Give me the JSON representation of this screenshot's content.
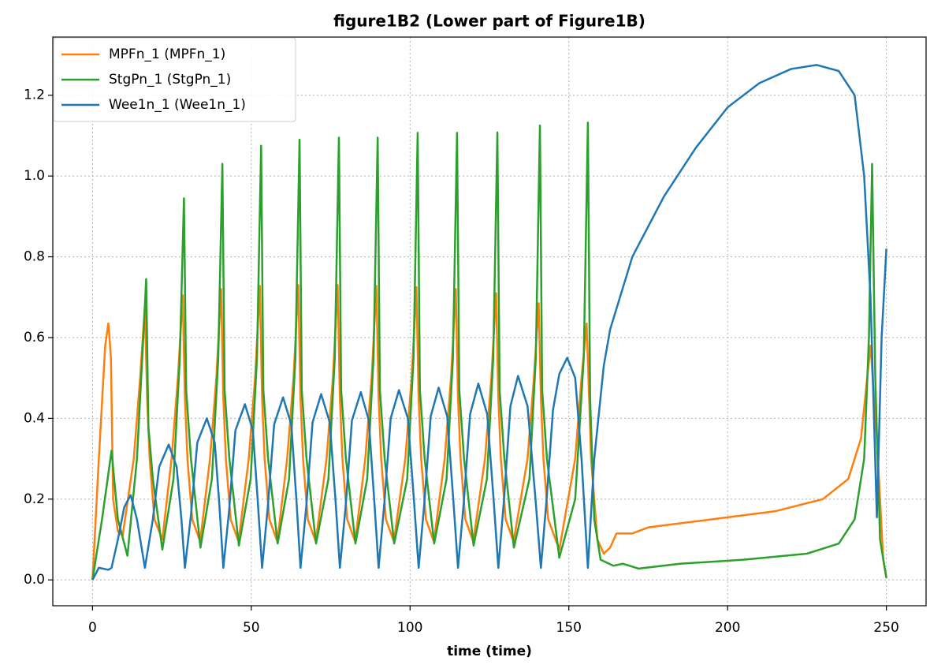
{
  "chart_data": {
    "type": "line",
    "title": "figure1B2 (Lower part of Figure1B)",
    "x_label": "time (time)",
    "xlim": [
      -12.5,
      262.5
    ],
    "ylim": [
      -0.064,
      1.344
    ],
    "xticks": [
      0,
      50,
      100,
      150,
      200,
      250
    ],
    "yticks": [
      {
        "value": 0,
        "label": "0.0"
      },
      {
        "value": 0.2,
        "label": "0.2"
      },
      {
        "value": 0.4,
        "label": "0.4"
      },
      {
        "value": 0.6,
        "label": "0.6"
      },
      {
        "value": 0.8,
        "label": "0.8"
      },
      {
        "value": 1.0,
        "label": "1.0"
      },
      {
        "value": 1.2,
        "label": "1.2"
      }
    ],
    "grid": true,
    "legend_loc": "upper left",
    "series": [
      {
        "name": "MPFn_1 (MPFn_1)",
        "color": "#ff7f0e",
        "x": [
          0,
          2,
          4,
          5,
          5.8,
          6.5,
          8,
          9.5,
          13,
          15,
          16.5,
          17.2,
          18,
          19.5,
          22,
          24.9,
          26.9,
          28.4,
          29.1,
          29.9,
          31.4,
          33.9,
          37,
          39,
          40.5,
          41.2,
          42,
          43.5,
          46,
          49.2,
          51.2,
          52.7,
          53.4,
          54.2,
          55.7,
          58.2,
          61.3,
          63.3,
          64.8,
          65.5,
          66.3,
          67.8,
          70.3,
          73.7,
          75.7,
          77.2,
          77.9,
          78.7,
          80.2,
          82.7,
          85.9,
          87.9,
          89.4,
          90.1,
          90.9,
          92.4,
          94.9,
          98.5,
          100.5,
          102,
          102.7,
          103.5,
          105,
          107.5,
          110.9,
          112.9,
          114.4,
          115.1,
          115.9,
          117.4,
          119.9,
          123.6,
          125.6,
          127.1,
          127.8,
          128.6,
          130.1,
          132.6,
          137,
          139,
          140.5,
          141.2,
          142,
          143.5,
          147,
          152,
          154,
          155.6,
          156.4,
          157,
          159,
          161,
          163,
          165,
          170,
          175,
          185,
          200,
          215,
          230,
          238,
          242,
          245,
          247,
          249,
          250
        ],
        "values": [
          0,
          0.3,
          0.58,
          0.635,
          0.55,
          0.2,
          0.12,
          0.11,
          0.3,
          0.5,
          0.68,
          0.45,
          0.3,
          0.15,
          0.1,
          0.3,
          0.5,
          0.705,
          0.45,
          0.3,
          0.15,
          0.095,
          0.3,
          0.5,
          0.72,
          0.45,
          0.3,
          0.15,
          0.095,
          0.3,
          0.5,
          0.728,
          0.45,
          0.3,
          0.15,
          0.095,
          0.3,
          0.5,
          0.73,
          0.45,
          0.3,
          0.15,
          0.095,
          0.3,
          0.5,
          0.73,
          0.45,
          0.3,
          0.15,
          0.095,
          0.3,
          0.5,
          0.728,
          0.45,
          0.3,
          0.15,
          0.095,
          0.3,
          0.5,
          0.725,
          0.45,
          0.3,
          0.15,
          0.095,
          0.3,
          0.5,
          0.72,
          0.45,
          0.3,
          0.15,
          0.095,
          0.3,
          0.5,
          0.71,
          0.45,
          0.3,
          0.15,
          0.095,
          0.3,
          0.5,
          0.685,
          0.45,
          0.3,
          0.15,
          0.075,
          0.3,
          0.5,
          0.635,
          0.45,
          0.3,
          0.1,
          0.065,
          0.08,
          0.115,
          0.115,
          0.13,
          0.14,
          0.155,
          0.17,
          0.2,
          0.25,
          0.35,
          0.58,
          0.35,
          0.05,
          0.005
        ]
      },
      {
        "name": "StgPn_1 (StgPn_1)",
        "color": "#2ca02c",
        "x": [
          0,
          3,
          6,
          8,
          11,
          14,
          16,
          16.9,
          17.6,
          19,
          22,
          25.5,
          27.5,
          28.8,
          29.5,
          31,
          34,
          37.6,
          39.6,
          40.9,
          41.6,
          43.1,
          46.1,
          49.8,
          51.8,
          53.1,
          53.8,
          55.3,
          58.3,
          61.9,
          63.9,
          65.2,
          65.9,
          67.4,
          70.4,
          74.3,
          76.3,
          77.6,
          78.3,
          79.8,
          82.8,
          86.5,
          88.5,
          89.8,
          90.5,
          92,
          95,
          99.1,
          101.1,
          102.4,
          103.1,
          104.6,
          107.6,
          111.5,
          113.5,
          114.8,
          115.5,
          117,
          120,
          124.2,
          126.2,
          127.5,
          128.2,
          129.7,
          132.7,
          137.6,
          139.6,
          140.9,
          141.6,
          143.1,
          147,
          152,
          154.7,
          156,
          156.7,
          158,
          160,
          164,
          167,
          172,
          185,
          205,
          225,
          235,
          240,
          243,
          244.5,
          245.5,
          246.5,
          248,
          250
        ],
        "values": [
          0,
          0.15,
          0.32,
          0.15,
          0.06,
          0.3,
          0.6,
          0.745,
          0.38,
          0.25,
          0.075,
          0.25,
          0.55,
          0.945,
          0.47,
          0.3,
          0.08,
          0.25,
          0.55,
          1.03,
          0.47,
          0.3,
          0.085,
          0.25,
          0.55,
          1.075,
          0.47,
          0.3,
          0.09,
          0.25,
          0.55,
          1.09,
          0.47,
          0.3,
          0.09,
          0.25,
          0.55,
          1.095,
          0.47,
          0.3,
          0.09,
          0.25,
          0.55,
          1.095,
          0.47,
          0.3,
          0.09,
          0.25,
          0.55,
          1.107,
          0.47,
          0.3,
          0.09,
          0.25,
          0.55,
          1.107,
          0.47,
          0.3,
          0.085,
          0.25,
          0.55,
          1.108,
          0.47,
          0.3,
          0.08,
          0.25,
          0.55,
          1.125,
          0.47,
          0.3,
          0.055,
          0.2,
          0.55,
          1.132,
          0.45,
          0.15,
          0.05,
          0.035,
          0.04,
          0.028,
          0.04,
          0.05,
          0.065,
          0.09,
          0.15,
          0.3,
          0.6,
          1.03,
          0.5,
          0.1,
          0.005
        ]
      },
      {
        "name": "Wee1n_1 (Wee1n_1)",
        "color": "#1f77b4",
        "x": [
          0,
          2,
          5,
          6,
          8,
          10,
          12,
          14,
          16.5,
          19,
          21,
          24,
          26.5,
          28,
          29.1,
          31,
          33,
          36,
          38.5,
          40,
          41.2,
          43,
          45,
          48,
          50.5,
          52,
          53.4,
          55.2,
          57.2,
          60,
          62.6,
          64.2,
          65.5,
          67.3,
          69.3,
          72,
          74.7,
          76.5,
          77.9,
          79.7,
          81.7,
          84.5,
          87,
          88.7,
          90.1,
          91.9,
          93.9,
          96.5,
          99.3,
          101.2,
          102.7,
          104.5,
          106.5,
          109,
          111.7,
          113.6,
          115.1,
          116.9,
          118.9,
          121.5,
          124.3,
          126.3,
          127.8,
          129.6,
          131.6,
          134,
          137,
          139.5,
          141.2,
          143,
          145,
          147,
          149.5,
          152,
          154,
          156,
          158,
          161,
          163,
          170,
          180,
          190,
          200,
          210,
          220,
          228,
          235,
          240,
          243,
          245,
          247,
          248.5,
          250
        ],
        "values": [
          0,
          0.03,
          0.025,
          0.03,
          0.1,
          0.18,
          0.21,
          0.15,
          0.03,
          0.15,
          0.28,
          0.335,
          0.28,
          0.15,
          0.03,
          0.16,
          0.34,
          0.4,
          0.34,
          0.18,
          0.03,
          0.17,
          0.37,
          0.435,
          0.37,
          0.2,
          0.03,
          0.18,
          0.385,
          0.452,
          0.385,
          0.2,
          0.03,
          0.18,
          0.39,
          0.46,
          0.39,
          0.2,
          0.03,
          0.18,
          0.395,
          0.465,
          0.395,
          0.2,
          0.03,
          0.19,
          0.4,
          0.47,
          0.4,
          0.2,
          0.03,
          0.19,
          0.405,
          0.476,
          0.405,
          0.2,
          0.03,
          0.19,
          0.41,
          0.486,
          0.41,
          0.2,
          0.03,
          0.2,
          0.43,
          0.505,
          0.43,
          0.2,
          0.03,
          0.2,
          0.42,
          0.51,
          0.55,
          0.5,
          0.3,
          0.03,
          0.3,
          0.53,
          0.62,
          0.8,
          0.95,
          1.07,
          1.17,
          1.23,
          1.265,
          1.275,
          1.26,
          1.2,
          1.0,
          0.7,
          0.155,
          0.6,
          0.82
        ]
      }
    ]
  }
}
